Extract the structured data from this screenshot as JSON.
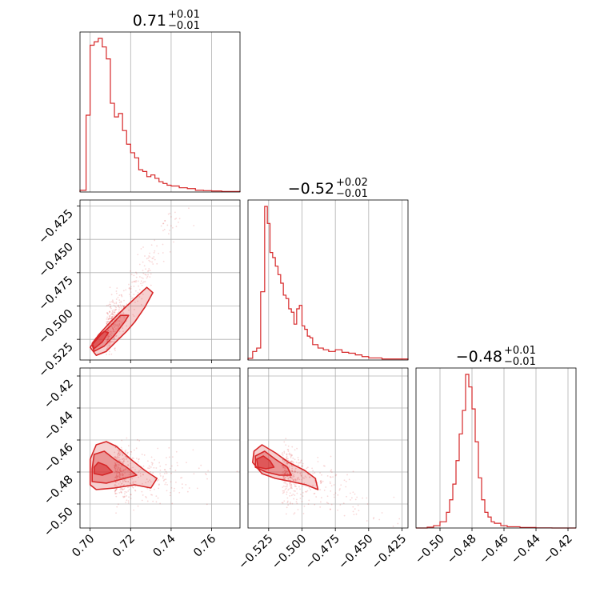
{
  "chart_data": {
    "type": "corner",
    "line_color": "#d62728",
    "parameters": [
      {
        "value": "0.71",
        "plus": "+0.01",
        "minus": "−0.01",
        "range": [
          0.695,
          0.774
        ],
        "ticks": [
          0.7,
          0.72,
          0.74,
          0.76
        ],
        "tick_labels": [
          "0.70",
          "0.72",
          "0.74",
          "0.76"
        ]
      },
      {
        "value": "−0.52",
        "plus": "+0.02",
        "minus": "−0.01",
        "range": [
          -0.5405,
          -0.4205
        ],
        "ticks": [
          -0.525,
          -0.5,
          -0.475,
          -0.45,
          -0.425
        ],
        "tick_labels": [
          "−0.525",
          "−0.500",
          "−0.475",
          "−0.450",
          "−0.425"
        ]
      },
      {
        "value": "−0.48",
        "plus": "+0.01",
        "minus": "−0.01",
        "range": [
          -0.515,
          -0.415
        ],
        "ticks": [
          -0.5,
          -0.48,
          -0.46,
          -0.44,
          -0.42
        ],
        "tick_labels": [
          "−0.50",
          "−0.48",
          "−0.46",
          "−0.44",
          "−0.42"
        ]
      }
    ],
    "histograms": [
      {
        "param": 0,
        "edges": [
          0.695,
          0.698,
          0.7,
          0.702,
          0.704,
          0.706,
          0.708,
          0.71,
          0.712,
          0.714,
          0.716,
          0.718,
          0.72,
          0.722,
          0.724,
          0.726,
          0.728,
          0.73,
          0.732,
          0.734,
          0.736,
          0.738,
          0.74,
          0.744,
          0.748,
          0.752,
          0.756,
          0.76,
          0.765,
          0.774
        ],
        "counts": [
          0.01,
          0.45,
          0.86,
          0.88,
          0.9,
          0.85,
          0.78,
          0.52,
          0.44,
          0.46,
          0.36,
          0.28,
          0.23,
          0.2,
          0.13,
          0.12,
          0.09,
          0.1,
          0.08,
          0.06,
          0.05,
          0.04,
          0.035,
          0.025,
          0.02,
          0.01,
          0.008,
          0.006,
          0.003
        ]
      },
      {
        "param": 1,
        "edges": [
          -0.5405,
          -0.537,
          -0.534,
          -0.531,
          -0.528,
          -0.526,
          -0.524,
          -0.522,
          -0.52,
          -0.518,
          -0.516,
          -0.514,
          -0.512,
          -0.51,
          -0.508,
          -0.506,
          -0.504,
          -0.502,
          -0.5,
          -0.498,
          -0.496,
          -0.494,
          -0.492,
          -0.488,
          -0.484,
          -0.48,
          -0.475,
          -0.47,
          -0.465,
          -0.46,
          -0.455,
          -0.45,
          -0.44,
          -0.4205
        ],
        "counts": [
          0.01,
          0.05,
          0.07,
          0.4,
          0.9,
          0.8,
          0.63,
          0.6,
          0.55,
          0.5,
          0.45,
          0.38,
          0.36,
          0.3,
          0.28,
          0.21,
          0.3,
          0.32,
          0.2,
          0.18,
          0.14,
          0.13,
          0.09,
          0.07,
          0.06,
          0.05,
          0.06,
          0.045,
          0.04,
          0.03,
          0.02,
          0.012,
          0.006
        ]
      },
      {
        "param": 2,
        "edges": [
          -0.515,
          -0.508,
          -0.504,
          -0.5,
          -0.496,
          -0.494,
          -0.492,
          -0.49,
          -0.488,
          -0.486,
          -0.484,
          -0.482,
          -0.48,
          -0.478,
          -0.476,
          -0.474,
          -0.472,
          -0.47,
          -0.468,
          -0.466,
          -0.462,
          -0.458,
          -0.45,
          -0.44,
          -0.43,
          -0.415
        ],
        "counts": [
          0.0,
          0.005,
          0.015,
          0.04,
          0.1,
          0.18,
          0.28,
          0.43,
          0.6,
          0.75,
          0.98,
          0.9,
          0.76,
          0.55,
          0.32,
          0.18,
          0.1,
          0.07,
          0.04,
          0.03,
          0.015,
          0.008,
          0.003,
          0.001,
          0.0
        ]
      }
    ],
    "scatter_panels": [
      {
        "x_param": 0,
        "y_param": 1
      },
      {
        "x_param": 0,
        "y_param": 2
      },
      {
        "x_param": 1,
        "y_param": 2
      }
    ],
    "contours": [
      {
        "x_param": 0,
        "y_param": 1,
        "levels": [
          [
            [
              0.703,
              -0.537
            ],
            [
              0.708,
              -0.534
            ],
            [
              0.712,
              -0.528
            ],
            [
              0.718,
              -0.519
            ],
            [
              0.722,
              -0.512
            ],
            [
              0.727,
              -0.501
            ],
            [
              0.731,
              -0.49
            ],
            [
              0.728,
              -0.486
            ],
            [
              0.723,
              -0.493
            ],
            [
              0.716,
              -0.503
            ],
            [
              0.71,
              -0.512
            ],
            [
              0.704,
              -0.522
            ],
            [
              0.7,
              -0.531
            ]
          ],
          [
            [
              0.702,
              -0.534
            ],
            [
              0.707,
              -0.53
            ],
            [
              0.712,
              -0.522
            ],
            [
              0.717,
              -0.512
            ],
            [
              0.719,
              -0.507
            ],
            [
              0.715,
              -0.507
            ],
            [
              0.71,
              -0.515
            ],
            [
              0.705,
              -0.522
            ],
            [
              0.701,
              -0.529
            ]
          ],
          [
            [
              0.702,
              -0.532
            ],
            [
              0.706,
              -0.527
            ],
            [
              0.709,
              -0.52
            ],
            [
              0.707,
              -0.519
            ],
            [
              0.703,
              -0.524
            ],
            [
              0.701,
              -0.528
            ]
          ]
        ]
      },
      {
        "x_param": 0,
        "y_param": 2,
        "levels": [
          [
            [
              0.7,
              -0.488
            ],
            [
              0.703,
              -0.491
            ],
            [
              0.712,
              -0.49
            ],
            [
              0.722,
              -0.488
            ],
            [
              0.73,
              -0.49
            ],
            [
              0.733,
              -0.484
            ],
            [
              0.727,
              -0.479
            ],
            [
              0.72,
              -0.472
            ],
            [
              0.713,
              -0.464
            ],
            [
              0.708,
              -0.461
            ],
            [
              0.703,
              -0.463
            ],
            [
              0.7,
              -0.472
            ]
          ],
          [
            [
              0.701,
              -0.486
            ],
            [
              0.708,
              -0.487
            ],
            [
              0.717,
              -0.484
            ],
            [
              0.723,
              -0.482
            ],
            [
              0.718,
              -0.477
            ],
            [
              0.712,
              -0.472
            ],
            [
              0.707,
              -0.467
            ],
            [
              0.702,
              -0.469
            ],
            [
              0.701,
              -0.478
            ]
          ],
          [
            [
              0.702,
              -0.481
            ],
            [
              0.706,
              -0.482
            ],
            [
              0.711,
              -0.48
            ],
            [
              0.708,
              -0.476
            ],
            [
              0.704,
              -0.474
            ],
            [
              0.702,
              -0.477
            ]
          ]
        ]
      },
      {
        "x_param": 1,
        "y_param": 2,
        "levels": [
          [
            [
              -0.536,
              -0.467
            ],
            [
              -0.537,
              -0.474
            ],
            [
              -0.53,
              -0.481
            ],
            [
              -0.52,
              -0.484
            ],
            [
              -0.508,
              -0.486
            ],
            [
              -0.497,
              -0.488
            ],
            [
              -0.488,
              -0.491
            ],
            [
              -0.49,
              -0.484
            ],
            [
              -0.498,
              -0.479
            ],
            [
              -0.51,
              -0.474
            ],
            [
              -0.52,
              -0.468
            ],
            [
              -0.53,
              -0.463
            ]
          ],
          [
            [
              -0.535,
              -0.47
            ],
            [
              -0.535,
              -0.477
            ],
            [
              -0.527,
              -0.48
            ],
            [
              -0.517,
              -0.482
            ],
            [
              -0.508,
              -0.482
            ],
            [
              -0.511,
              -0.477
            ],
            [
              -0.52,
              -0.472
            ],
            [
              -0.528,
              -0.467
            ]
          ],
          [
            [
              -0.534,
              -0.472
            ],
            [
              -0.533,
              -0.477
            ],
            [
              -0.527,
              -0.478
            ],
            [
              -0.521,
              -0.477
            ],
            [
              -0.524,
              -0.473
            ],
            [
              -0.529,
              -0.47
            ]
          ]
        ]
      }
    ],
    "grid": true
  }
}
